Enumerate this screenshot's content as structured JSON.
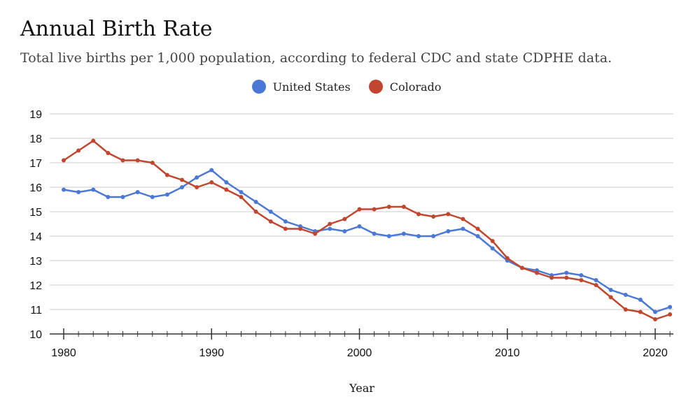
{
  "chart_data": {
    "type": "line",
    "title": "Annual Birth Rate",
    "subtitle": "Total live births per 1,000 population, according to federal CDC and state CDPHE data.",
    "xlabel": "Year",
    "ylabel": "",
    "ylim": [
      10,
      19
    ],
    "xlim": [
      1980,
      2021
    ],
    "yticks": [
      10,
      11,
      12,
      13,
      14,
      15,
      16,
      17,
      18,
      19
    ],
    "xticks": [
      1980,
      1990,
      2000,
      2010,
      2020
    ],
    "grid": true,
    "legend_position": "top-center",
    "x": [
      1980,
      1981,
      1982,
      1983,
      1984,
      1985,
      1986,
      1987,
      1988,
      1989,
      1990,
      1991,
      1992,
      1993,
      1994,
      1995,
      1996,
      1997,
      1998,
      1999,
      2000,
      2001,
      2002,
      2003,
      2004,
      2005,
      2006,
      2007,
      2008,
      2009,
      2010,
      2011,
      2012,
      2013,
      2014,
      2015,
      2016,
      2017,
      2018,
      2019,
      2020,
      2021
    ],
    "series": [
      {
        "name": "United States",
        "color": "#4a78d4",
        "values": [
          15.9,
          15.8,
          15.9,
          15.6,
          15.6,
          15.8,
          15.6,
          15.7,
          16.0,
          16.4,
          16.7,
          16.2,
          15.8,
          15.4,
          15.0,
          14.6,
          14.4,
          14.2,
          14.3,
          14.2,
          14.4,
          14.1,
          14.0,
          14.1,
          14.0,
          14.0,
          14.2,
          14.3,
          14.0,
          13.5,
          13.0,
          12.7,
          12.6,
          12.4,
          12.5,
          12.4,
          12.2,
          11.8,
          11.6,
          11.4,
          10.9,
          11.1
        ]
      },
      {
        "name": "Colorado",
        "color": "#c0472e",
        "values": [
          17.1,
          17.5,
          17.9,
          17.4,
          17.1,
          17.1,
          17.0,
          16.5,
          16.3,
          16.0,
          16.2,
          15.9,
          15.6,
          15.0,
          14.6,
          14.3,
          14.3,
          14.1,
          14.5,
          14.7,
          15.1,
          15.1,
          15.2,
          15.2,
          14.9,
          14.8,
          14.9,
          14.7,
          14.3,
          13.8,
          13.1,
          12.7,
          12.5,
          12.3,
          12.3,
          12.2,
          12.0,
          11.5,
          11.0,
          10.9,
          10.6,
          10.8
        ]
      }
    ]
  }
}
